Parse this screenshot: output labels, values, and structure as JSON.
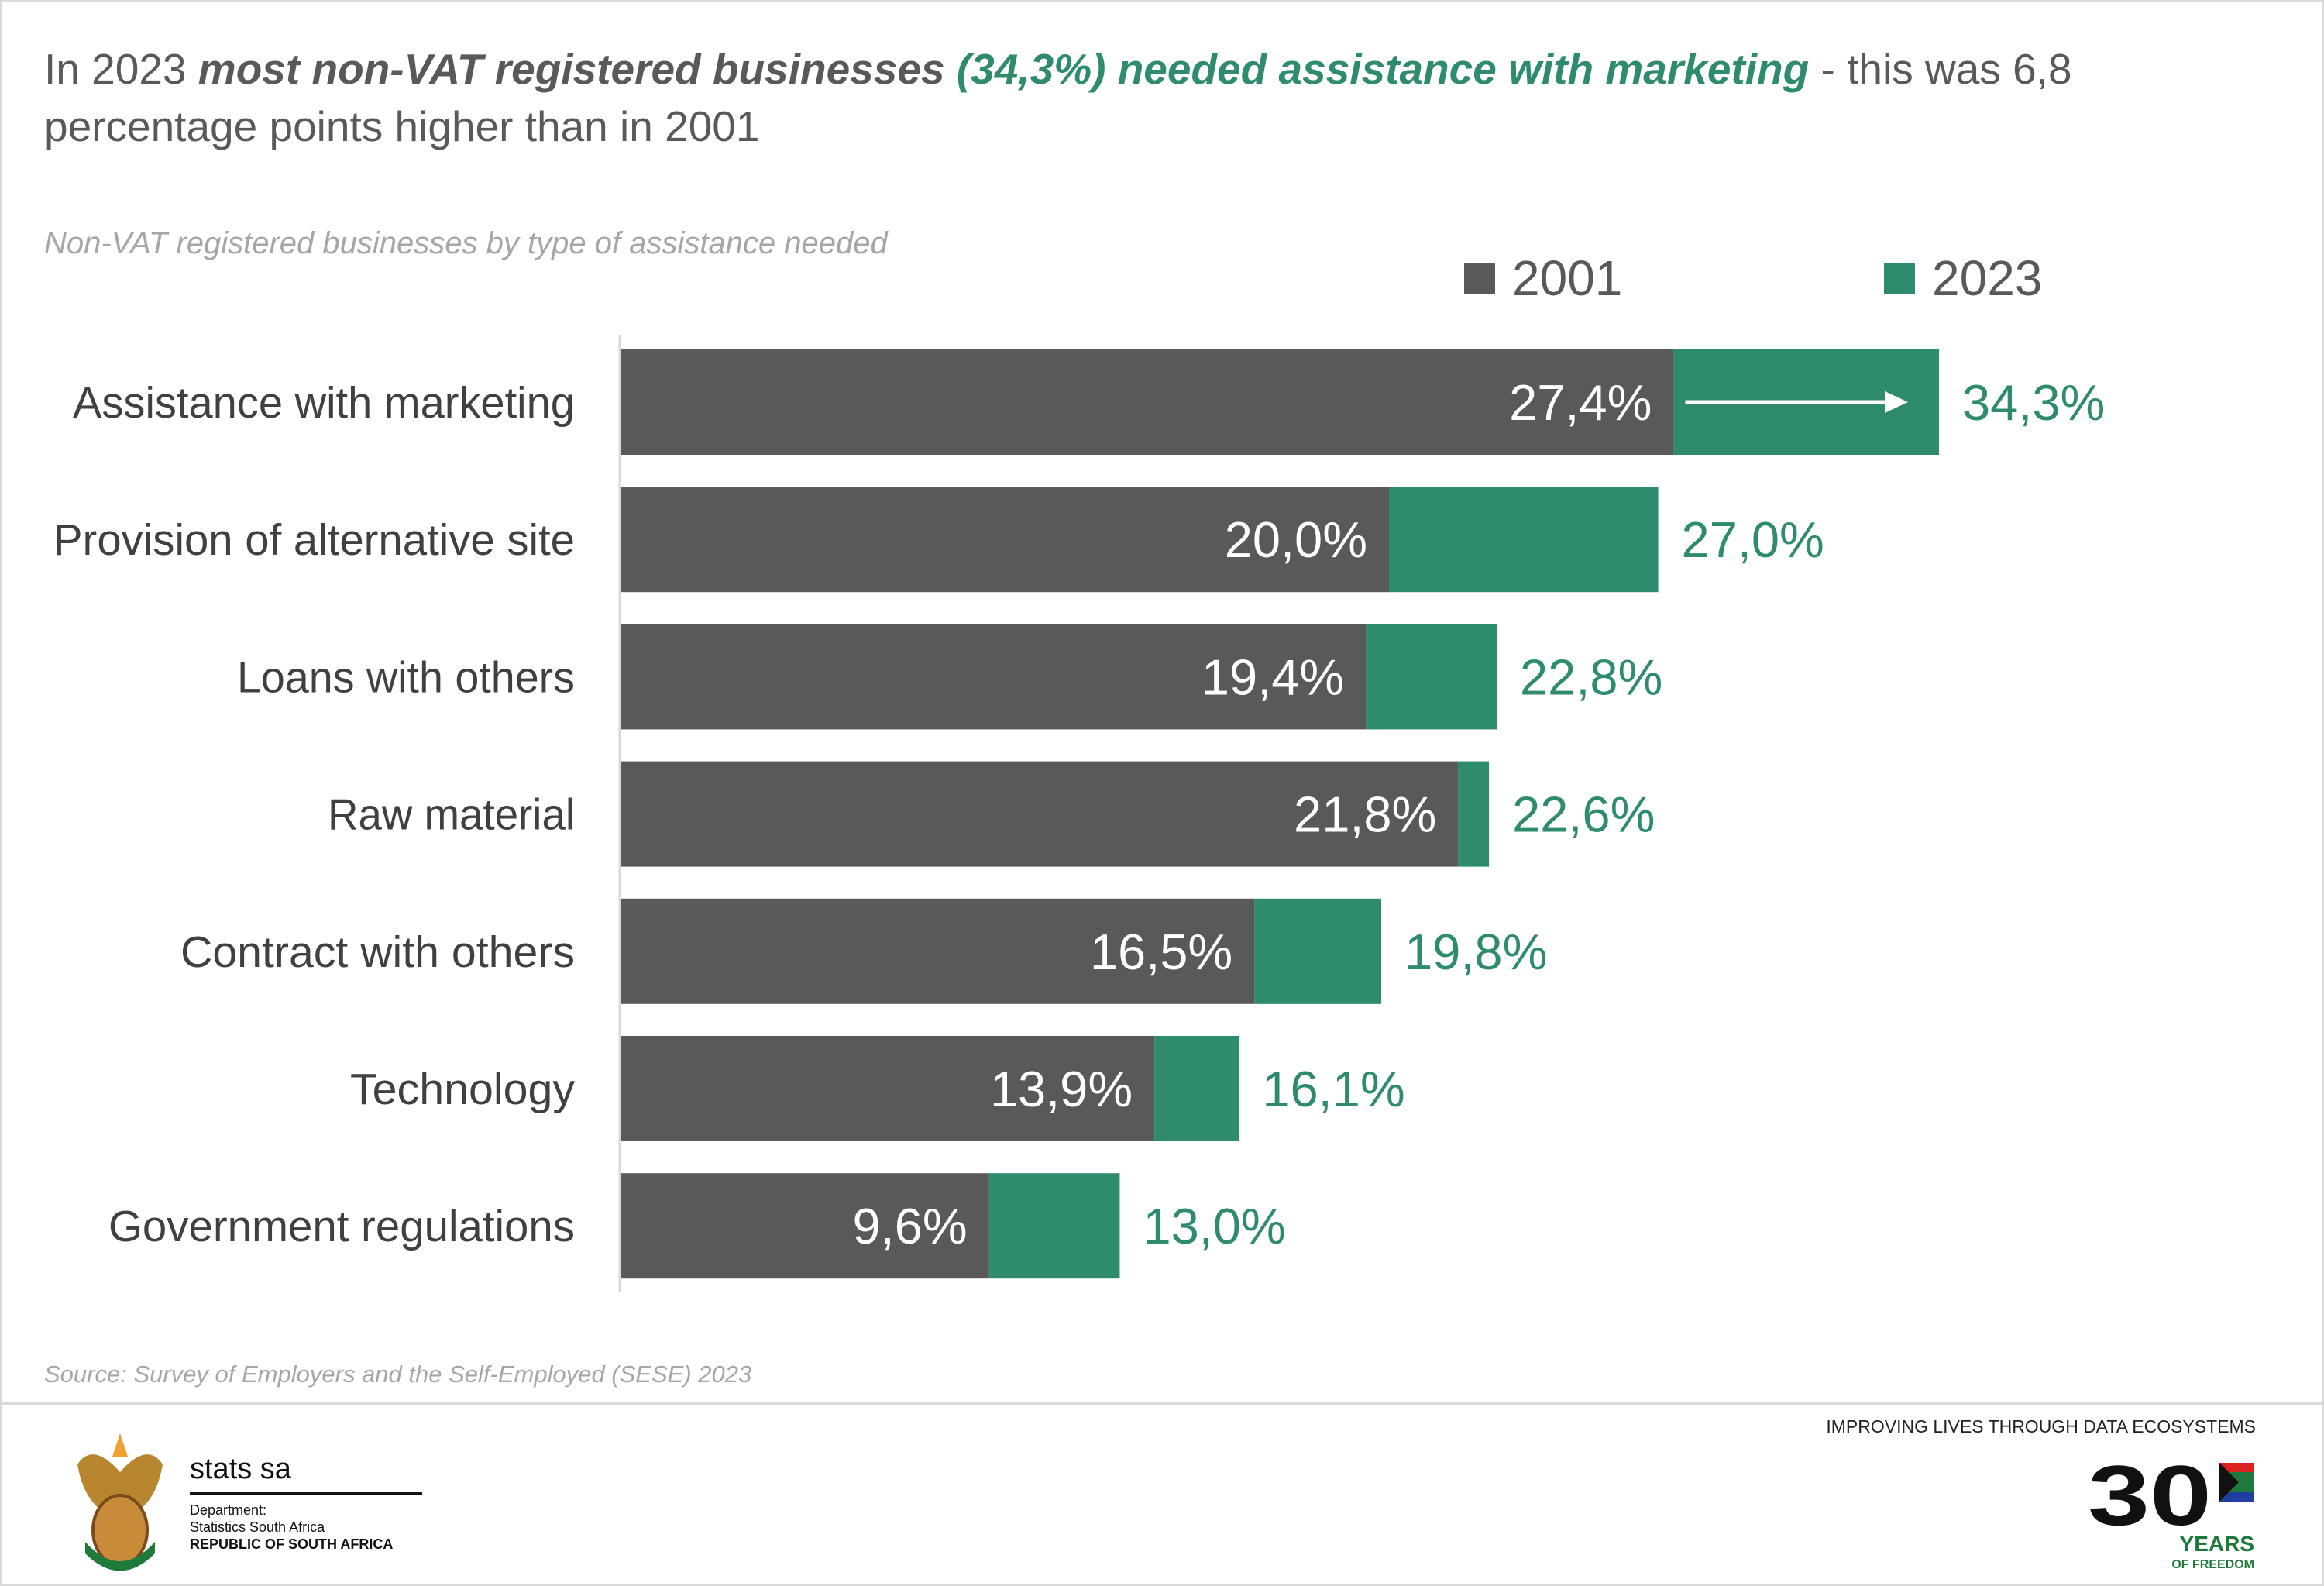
{
  "title": {
    "part1": "In 2023 ",
    "part2_bold": "most non-VAT registered businesses ",
    "part3_highlight": " (34,3%) needed assistance with marketing",
    "part4": "  - this was 6,8 percentage points higher than in 2001"
  },
  "colors": {
    "series_2001": "#595959",
    "series_2023": "#2e8b6e",
    "label_text": "#404040"
  },
  "chart_data": {
    "type": "bar",
    "orientation": "horizontal",
    "subtitle": "Non-VAT registered businesses by type of assistance needed",
    "categories": [
      "Assistance with marketing",
      "Provision of alternative site",
      "Loans with others",
      "Raw material",
      "Contract with others",
      "Technology",
      "Government regulations"
    ],
    "series": [
      {
        "name": "2001",
        "values": [
          27.4,
          20.0,
          19.4,
          21.8,
          16.5,
          13.9,
          9.6
        ],
        "labels": [
          "27,4%",
          "20,0%",
          "19,4%",
          "21,8%",
          "16,5%",
          "13,9%",
          "9,6%"
        ]
      },
      {
        "name": "2023",
        "values": [
          34.3,
          27.0,
          22.8,
          22.6,
          19.8,
          16.1,
          13.0
        ],
        "labels": [
          "34,3%",
          "27,0%",
          "22,8%",
          "22,6%",
          "19,8%",
          "16,1%",
          "13,0%"
        ]
      }
    ],
    "legend_position": "top-right",
    "grid": false,
    "annotation": "arrow from 2001 to 2023 on Assistance with marketing"
  },
  "source": "Source:  Survey of Employers and the Self-Employed (SESE)  2023",
  "footer": {
    "logo_name": "stats sa",
    "dept_line1": "Department:",
    "dept_line2": "Statistics South Africa",
    "dept_line3": "REPUBLIC OF SOUTH AFRICA",
    "tagline": "IMPROVING LIVES THROUGH DATA ECOSYSTEMS",
    "badge_number": "30",
    "badge_text1": "YEARS",
    "badge_text2": "OF FREEDOM"
  }
}
